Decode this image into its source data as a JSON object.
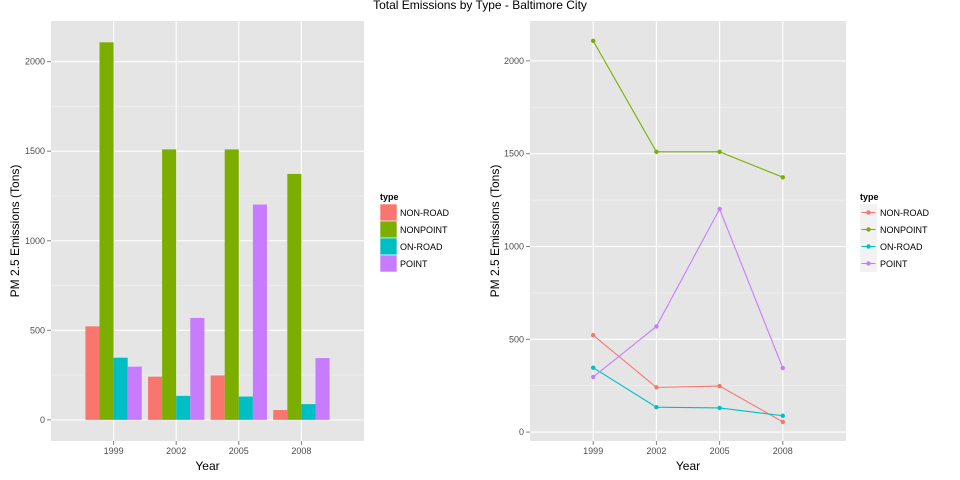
{
  "figure": {
    "title": "Total Emissions by Type - Baltimore City"
  },
  "colors": {
    "panel_background": "#e5e5e5",
    "grid_major": "#ffffff",
    "grid_minor": "#f2f2f2",
    "legend_key_background": "#f2f2f2",
    "NON-ROAD": "#f8766d",
    "NONPOINT": "#7cae00",
    "ON-ROAD": "#00bfc4",
    "POINT": "#c77cff"
  },
  "chart_data": [
    {
      "type": "bar",
      "position": "dodge",
      "categories": [
        "1999",
        "2002",
        "2005",
        "2008"
      ],
      "series": [
        {
          "name": "NON-ROAD",
          "values": [
            522,
            241,
            248,
            55
          ]
        },
        {
          "name": "NONPOINT",
          "values": [
            2108,
            1510,
            1510,
            1373
          ]
        },
        {
          "name": "ON-ROAD",
          "values": [
            347,
            134,
            130,
            88
          ]
        },
        {
          "name": "POINT",
          "values": [
            297,
            569,
            1202,
            345
          ]
        }
      ],
      "xlabel": "Year",
      "ylabel": "PM 2.5 Emissions (Tons)",
      "yticks": [
        0,
        500,
        1000,
        1500,
        2000
      ],
      "ylim": [
        -118,
        2227
      ],
      "grid": true,
      "legend": {
        "title": "type",
        "placement": "right",
        "entries": [
          "NON-ROAD",
          "NONPOINT",
          "ON-ROAD",
          "POINT"
        ]
      }
    },
    {
      "type": "line",
      "markers": true,
      "categories": [
        "1999",
        "2002",
        "2005",
        "2008"
      ],
      "series": [
        {
          "name": "NON-ROAD",
          "values": [
            522,
            241,
            248,
            55
          ]
        },
        {
          "name": "NONPOINT",
          "values": [
            2108,
            1510,
            1510,
            1373
          ]
        },
        {
          "name": "ON-ROAD",
          "values": [
            347,
            134,
            130,
            88
          ]
        },
        {
          "name": "POINT",
          "values": [
            297,
            569,
            1202,
            345
          ]
        }
      ],
      "xlabel": "Year",
      "ylabel": "PM 2.5 Emissions (Tons)",
      "yticks": [
        0,
        500,
        1000,
        1500,
        2000
      ],
      "ylim": [
        -48,
        2215
      ],
      "grid": true,
      "legend": {
        "title": "type",
        "placement": "right",
        "entries": [
          "NON-ROAD",
          "NONPOINT",
          "ON-ROAD",
          "POINT"
        ]
      }
    }
  ]
}
